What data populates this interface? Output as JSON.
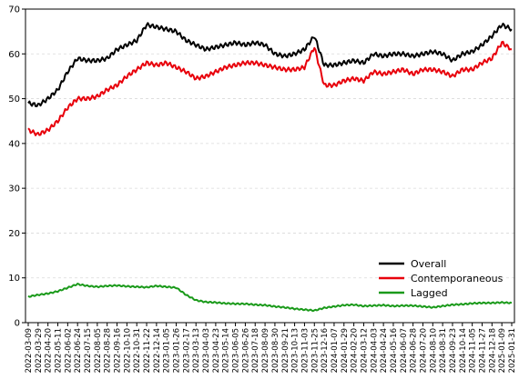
{
  "chart_data": {
    "type": "line",
    "title": "",
    "xlabel": "",
    "ylabel": "",
    "ylim": [
      0,
      70
    ],
    "yticks": [
      0,
      10,
      20,
      30,
      40,
      50,
      60,
      70
    ],
    "grid": "horizontal dashed",
    "legend": "bottom-right",
    "x": [
      "2022-03-09",
      "2022-03-29",
      "2022-04-20",
      "2022-05-11",
      "2022-06-02",
      "2022-06-24",
      "2022-07-15",
      "2022-08-05",
      "2022-08-28",
      "2022-09-16",
      "2022-10-10",
      "2022-10-31",
      "2022-11-22",
      "2022-12-14",
      "2023-01-05",
      "2023-01-26",
      "2023-02-17",
      "2023-03-13",
      "2023-04-03",
      "2023-04-23",
      "2023-05-14",
      "2023-06-05",
      "2023-06-26",
      "2023-07-18",
      "2023-08-09",
      "2023-08-30",
      "2023-09-21",
      "2023-10-13",
      "2023-11-03",
      "2023-11-25",
      "2023-12-16",
      "2024-01-07",
      "2024-01-29",
      "2024-02-20",
      "2024-03-12",
      "2024-04-03",
      "2024-04-24",
      "2024-05-16",
      "2024-06-07",
      "2024-06-28",
      "2024-07-20",
      "2024-08-10",
      "2024-08-31",
      "2024-09-23",
      "2024-10-14",
      "2024-11-05",
      "2024-11-27",
      "2024-12-18",
      "2025-01-09",
      "2025-01-31"
    ],
    "series": [
      {
        "name": "Overall",
        "color": "#000000",
        "values": [
          49,
          48.5,
          50,
          52,
          56,
          59,
          58.5,
          58.5,
          59,
          61,
          62,
          63,
          66.5,
          66,
          65.5,
          65,
          63,
          62,
          61,
          61.5,
          62,
          62.5,
          62,
          62.5,
          62,
          60,
          59.5,
          60,
          61,
          64,
          57.5,
          57.5,
          58,
          58.5,
          58,
          60,
          59.5,
          60,
          60,
          59.5,
          60,
          60.5,
          60,
          58.5,
          60,
          60.5,
          62,
          64,
          66.5,
          65.5
        ]
      },
      {
        "name": "Contemporaneous",
        "color": "#e8000b",
        "values": [
          43,
          42,
          43,
          45,
          48,
          50,
          50,
          50.5,
          52,
          53,
          55,
          56.5,
          58,
          57.5,
          58,
          57,
          56,
          54.5,
          55,
          56,
          57,
          57.5,
          58,
          58,
          57.5,
          57,
          56.5,
          56.5,
          57,
          61.5,
          53,
          53,
          54,
          54.5,
          54,
          56,
          55.5,
          56,
          56.5,
          55.5,
          56.5,
          56.5,
          56,
          55,
          56.5,
          56.5,
          58,
          59,
          62.5,
          61
        ]
      },
      {
        "name": "Lagged",
        "color": "#1a9a1a",
        "values": [
          5.8,
          6.2,
          6.5,
          7,
          7.8,
          8.6,
          8.2,
          8.0,
          8.2,
          8.3,
          8.1,
          8.0,
          7.9,
          8.2,
          8.0,
          7.8,
          6.2,
          5.0,
          4.6,
          4.5,
          4.3,
          4.2,
          4.2,
          4.0,
          3.9,
          3.6,
          3.4,
          3.1,
          2.9,
          2.7,
          3.3,
          3.6,
          3.9,
          4.0,
          3.7,
          3.8,
          3.9,
          3.7,
          3.8,
          3.8,
          3.6,
          3.4,
          3.7,
          4.0,
          4.1,
          4.3,
          4.4,
          4.4,
          4.5,
          4.4
        ]
      }
    ]
  }
}
